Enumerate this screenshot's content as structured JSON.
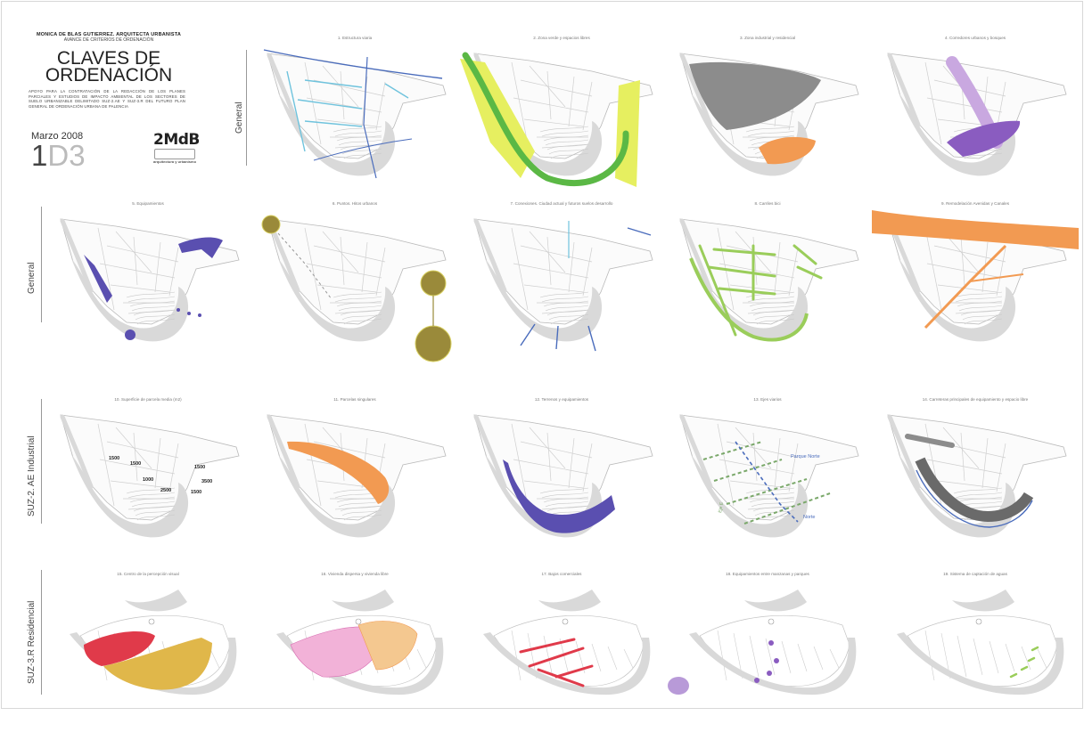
{
  "header": {
    "author": "MONICA DE BLAS GUTIERREZ. ARQUITECTA URBANISTA",
    "subtitle": "AVANCE DE CRITERIOS DE ORDENACIÓN",
    "title_line1": "CLAVES DE",
    "title_line2": "ORDENACIÓN",
    "description": "APOYO PARA LA CONTRATACIÓN DE LA REDACCIÓN DE LOS PLANES PARCIALES Y ESTUDIOS DE IMPACTO AMBIENTAL DE LOS SECTORES DE SUELO URBANIZABLE DELIMITADO SUZ-2.AE Y SUZ-3.R DEL FUTURO PLAN GENERAL DE ORDENACIÓN URBANA DE PALENCIA",
    "date": "Marzo 2008",
    "code_part1": "1",
    "code_part2": "D3",
    "logo": "2MdB",
    "logo_sub": "arquitectura y urbanismo"
  },
  "row_labels": [
    "General",
    "General",
    "SUZ-2. AE Industrial",
    "SUZ-3.R Residencial"
  ],
  "panels": [
    {
      "title": "1. Estructura viaria"
    },
    {
      "title": "2. Zona verde y espacios libres"
    },
    {
      "title": "3. Zona industrial y residencial"
    },
    {
      "title": "4. Corredores urbanos y bosques"
    },
    {
      "title": "5. Equipamientos"
    },
    {
      "title": "6. Puntos. Hitos urbanos"
    },
    {
      "title": "7. Conexiones. Ciudad actual y futuros suelos desarrollo"
    },
    {
      "title": "8. Carriles bici"
    },
    {
      "title": "9. Remodelación Avenidas y Canales"
    },
    {
      "title": "10. Superficie de parcela media (m2)"
    },
    {
      "title": "11. Parcelas singulares"
    },
    {
      "title": "12. Terrenos y equipamientos"
    },
    {
      "title": "13. Ejes viarios"
    },
    {
      "title": "14. Carreteras principales de equipamiento y espacio libre"
    },
    {
      "title": "15. Centro de la percepción visual"
    },
    {
      "title": "16. Vivienda dispersa y vivienda libre"
    },
    {
      "title": "17. Bajos comerciales"
    },
    {
      "title": "18. Equipamientos entre manzanas y parques"
    },
    {
      "title": "19. Sistema de captación de aguas"
    }
  ],
  "map_labels": {
    "parcel_sizes": [
      "1500",
      "1500",
      "1000",
      "2500",
      "1500",
      "3500",
      "1500"
    ],
    "axis_north": "Parque Norte",
    "axis_east": "Norte",
    "axis_left": "Eje E"
  },
  "colors": {
    "base_map": "#d9d9d9",
    "road_blue": "#4a6cbc",
    "road_cyan": "#6fc3dd",
    "green_dark": "#5bb845",
    "green_light": "#e6ef60",
    "grey_zone": "#8c8c8c",
    "orange": "#f29a52",
    "purple": "#8a5cc0",
    "indigo": "#5a4fb0",
    "olive": "#9a8a3a",
    "lime_lines": "#9acd5a",
    "red": "#e03a4a",
    "yellow_ochre": "#e0b74a",
    "pink": "#d66bb0"
  }
}
